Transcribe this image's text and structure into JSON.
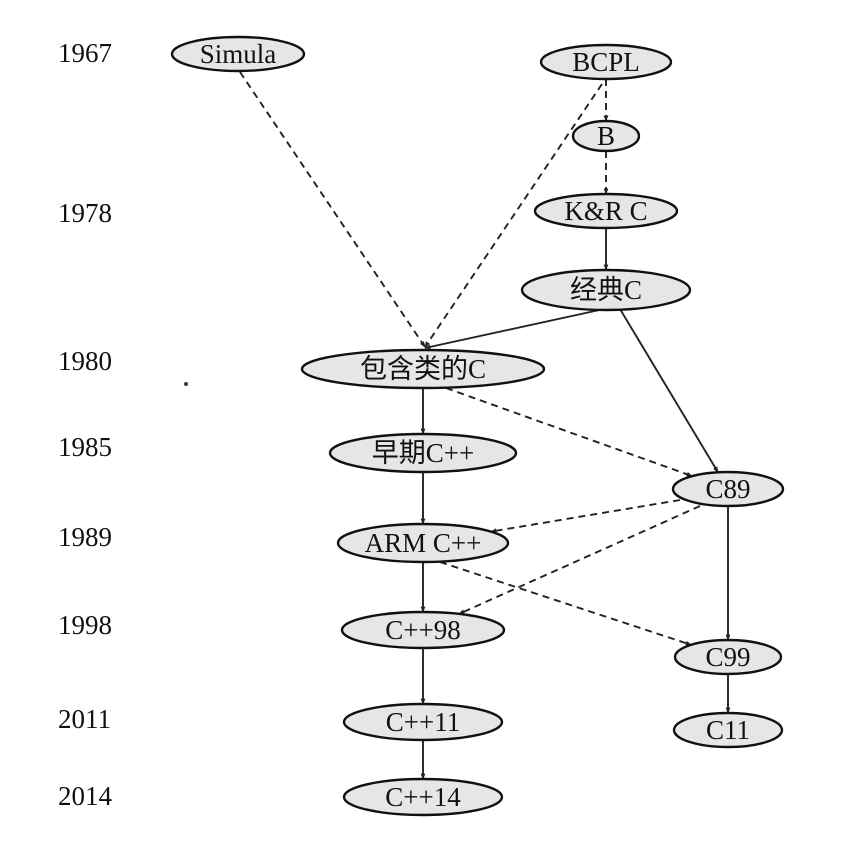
{
  "timeline": {
    "years": [
      "1967",
      "1978",
      "1980",
      "1985",
      "1989",
      "1998",
      "2011",
      "2014"
    ]
  },
  "nodes": {
    "simula": "Simula",
    "bcpl": "BCPL",
    "b": "B",
    "kr_c": "K&R C",
    "classic_c": "经典C",
    "c_with_classes": "包含类的C",
    "early_cpp": "早期C++",
    "c89": "C89",
    "arm_cpp": "ARM C++",
    "cpp98": "C++98",
    "c99": "C99",
    "cpp11": "C++11",
    "c11": "C11",
    "cpp14": "C++14"
  },
  "edges": [
    {
      "from": "simula",
      "to": "c_with_classes",
      "style": "dashed"
    },
    {
      "from": "bcpl",
      "to": "b",
      "style": "dashed"
    },
    {
      "from": "bcpl",
      "to": "c_with_classes",
      "style": "dashed"
    },
    {
      "from": "b",
      "to": "kr_c",
      "style": "dashed"
    },
    {
      "from": "kr_c",
      "to": "classic_c",
      "style": "solid"
    },
    {
      "from": "classic_c",
      "to": "c_with_classes",
      "style": "solid"
    },
    {
      "from": "classic_c",
      "to": "c89",
      "style": "solid"
    },
    {
      "from": "c_with_classes",
      "to": "early_cpp",
      "style": "solid"
    },
    {
      "from": "c_with_classes",
      "to": "c89",
      "style": "dashed"
    },
    {
      "from": "early_cpp",
      "to": "arm_cpp",
      "style": "solid"
    },
    {
      "from": "c89",
      "to": "arm_cpp",
      "style": "dashed"
    },
    {
      "from": "c89",
      "to": "cpp98",
      "style": "dashed"
    },
    {
      "from": "c89",
      "to": "c99",
      "style": "solid"
    },
    {
      "from": "arm_cpp",
      "to": "cpp98",
      "style": "solid"
    },
    {
      "from": "arm_cpp",
      "to": "c99",
      "style": "dashed"
    },
    {
      "from": "cpp98",
      "to": "cpp11",
      "style": "solid"
    },
    {
      "from": "c99",
      "to": "c11",
      "style": "solid"
    },
    {
      "from": "cpp11",
      "to": "cpp14",
      "style": "solid"
    }
  ]
}
